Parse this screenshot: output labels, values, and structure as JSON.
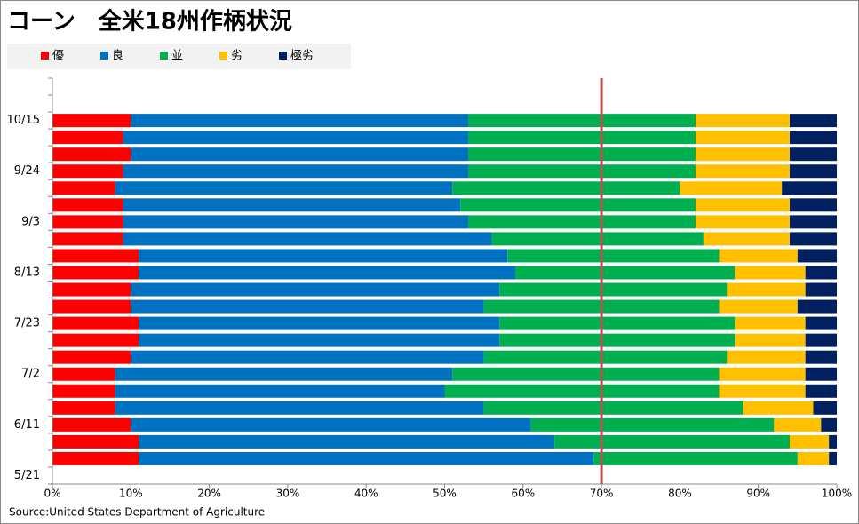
{
  "chart_data": {
    "type": "stacked_barh",
    "title": "コーン　全米18州作柄状況",
    "source": "Source:United States Department of Agriculture",
    "categories": [
      null,
      null,
      "10/15",
      null,
      null,
      "9/24",
      null,
      null,
      "9/3",
      null,
      null,
      "8/13",
      null,
      null,
      "7/23",
      null,
      null,
      "7/2",
      null,
      null,
      "6/11",
      null,
      null,
      "5/21"
    ],
    "series": [
      {
        "name": "優",
        "color": "#ff0000",
        "values": [
          null,
          null,
          10,
          9,
          10,
          9,
          8,
          9,
          9,
          9,
          11,
          11,
          10,
          10,
          11,
          11,
          10,
          8,
          8,
          8,
          10,
          11,
          11,
          null
        ]
      },
      {
        "name": "良",
        "color": "#0070c0",
        "values": [
          null,
          null,
          43,
          44,
          43,
          44,
          43,
          43,
          44,
          47,
          47,
          48,
          47,
          45,
          46,
          46,
          45,
          43,
          42,
          47,
          51,
          53,
          58,
          null
        ]
      },
      {
        "name": "並",
        "color": "#00b050",
        "values": [
          null,
          null,
          29,
          29,
          29,
          29,
          29,
          30,
          29,
          27,
          27,
          28,
          29,
          30,
          30,
          30,
          31,
          34,
          35,
          33,
          31,
          30,
          26,
          null
        ]
      },
      {
        "name": "劣",
        "color": "#ffc000",
        "values": [
          null,
          null,
          12,
          12,
          12,
          12,
          13,
          12,
          12,
          11,
          10,
          9,
          10,
          10,
          9,
          9,
          10,
          11,
          11,
          9,
          6,
          5,
          4,
          null
        ]
      },
      {
        "name": "極劣",
        "color": "#002060",
        "values": [
          null,
          null,
          6,
          6,
          6,
          6,
          7,
          6,
          6,
          6,
          5,
          4,
          4,
          5,
          4,
          4,
          4,
          4,
          4,
          3,
          2,
          1,
          1,
          null
        ]
      }
    ],
    "xlim": [
      0,
      100
    ],
    "xticks": [
      {
        "value": 0,
        "label": "0%"
      },
      {
        "value": 10,
        "label": "10%"
      },
      {
        "value": 20,
        "label": "20%"
      },
      {
        "value": 30,
        "label": "30%"
      },
      {
        "value": 40,
        "label": "40%"
      },
      {
        "value": 50,
        "label": "50%"
      },
      {
        "value": 60,
        "label": "60%"
      },
      {
        "value": 70,
        "label": "70%"
      },
      {
        "value": 80,
        "label": "80%"
      },
      {
        "value": 90,
        "label": "90%"
      },
      {
        "value": 100,
        "label": "100%"
      }
    ],
    "reference_x": 70,
    "reference_color": "#c0504d",
    "legend": "top-left"
  }
}
